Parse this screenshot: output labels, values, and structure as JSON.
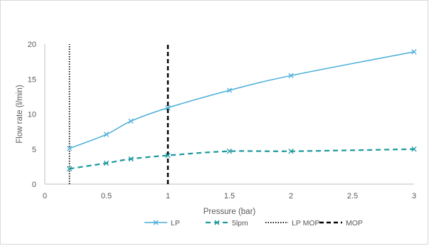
{
  "chart_data": {
    "type": "line",
    "xlabel": "Pressure (bar)",
    "ylabel": "Flow rate (l/min)",
    "xlim": [
      0,
      3
    ],
    "ylim": [
      0,
      20
    ],
    "x_ticks": [
      "0",
      "0.5",
      "1",
      "1.5",
      "2",
      "2.5",
      "3"
    ],
    "y_ticks": [
      "0",
      "5",
      "10",
      "15",
      "20"
    ],
    "grid": false,
    "legend_position": "bottom",
    "series": [
      {
        "name": "LP",
        "color": "#4aaed9",
        "style": "solid",
        "marker": "x",
        "x": [
          0.2,
          0.5,
          0.7,
          1.0,
          1.5,
          2.0,
          3.0
        ],
        "y": [
          5.1,
          7.1,
          9.0,
          10.9,
          13.4,
          15.5,
          18.9
        ]
      },
      {
        "name": "5lpm",
        "color": "#1f9aa0",
        "style": "dashed",
        "marker": "x",
        "x": [
          0.2,
          0.5,
          0.7,
          1.0,
          1.5,
          2.0,
          3.0
        ],
        "y": [
          2.2,
          3.0,
          3.6,
          4.1,
          4.7,
          4.7,
          5.0
        ]
      },
      {
        "name": "LP MOP",
        "color": "#000000",
        "style": "dotted",
        "marker": "none",
        "x": [
          0.2,
          0.2
        ],
        "y": [
          0,
          20
        ]
      },
      {
        "name": "MOP",
        "color": "#000000",
        "style": "dashed-heavy",
        "marker": "none",
        "x": [
          1.0,
          1.0
        ],
        "y": [
          0,
          20
        ]
      }
    ]
  }
}
